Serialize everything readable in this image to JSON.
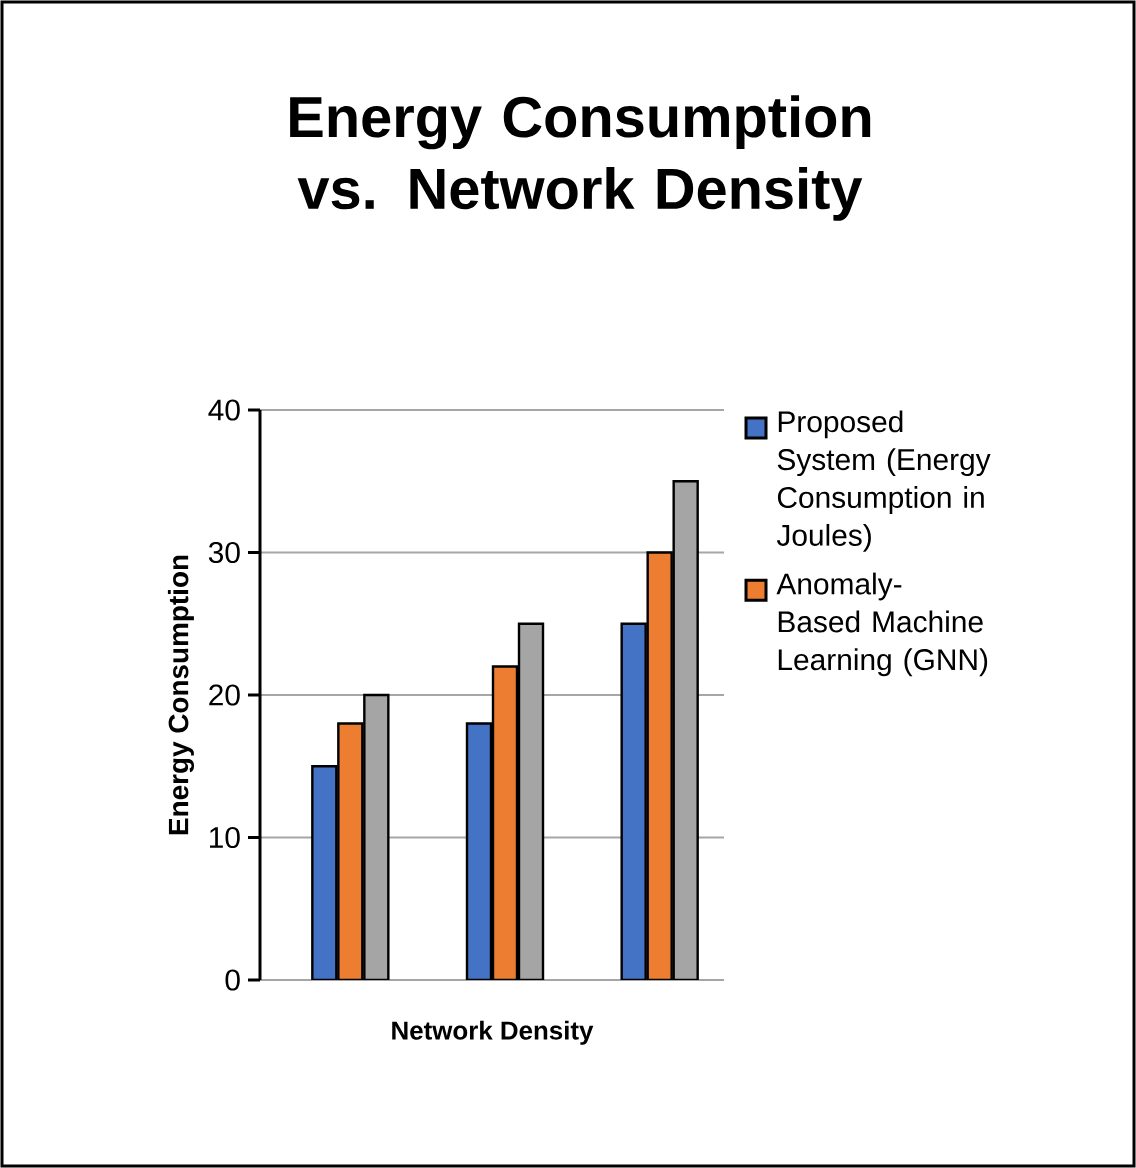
{
  "chart_data": {
    "type": "bar",
    "title": "Energy Consumption vs. Network Density",
    "xlabel": "Network Density",
    "ylabel": "Energy Consumption",
    "categories": [
      null,
      null,
      null
    ],
    "series": [
      {
        "name": "Proposed System (Energy Consumption in Joules)",
        "color": "#4472c4",
        "values": [
          15,
          18,
          25
        ]
      },
      {
        "name": "Anomaly-Based Machine Learning (GNN)",
        "color": "#ed7d31",
        "values": [
          18,
          22,
          30
        ]
      },
      {
        "color": "#a5a5a5",
        "values": [
          20,
          25,
          35
        ]
      }
    ],
    "ylim": [
      0,
      40
    ],
    "yticks": [
      0,
      10,
      20,
      30,
      40
    ],
    "grid": "y",
    "legend": "right"
  }
}
